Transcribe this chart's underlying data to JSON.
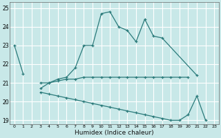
{
  "xlabel": "Humidex (Indice chaleur)",
  "background_color": "#c8e8e8",
  "grid_color": "#ffffff",
  "line_color": "#2a7a7a",
  "xlim": [
    -0.5,
    23.5
  ],
  "ylim": [
    18.8,
    25.3
  ],
  "yticks": [
    19,
    20,
    21,
    22,
    23,
    24,
    25
  ],
  "xtick_labels": [
    "0",
    "1",
    "2",
    "3",
    "4",
    "5",
    "6",
    "7",
    "8",
    "9",
    "10",
    "11",
    "12",
    "13",
    "14",
    "15",
    "16",
    "17",
    "18",
    "19",
    "20",
    "21",
    "22",
    "23"
  ],
  "xtick_vals": [
    0,
    1,
    2,
    3,
    4,
    5,
    6,
    7,
    8,
    9,
    10,
    11,
    12,
    13,
    14,
    15,
    16,
    17,
    18,
    19,
    20,
    21,
    22,
    23
  ],
  "series": [
    {
      "segments": [
        {
          "x": [
            0,
            1
          ],
          "y": [
            23.0,
            21.5
          ]
        },
        {
          "x": [
            3,
            4,
            5,
            6,
            7,
            8,
            9,
            10,
            11,
            12,
            13,
            14,
            15,
            16,
            17,
            21
          ],
          "y": [
            21.0,
            21.0,
            21.2,
            21.3,
            21.8,
            23.0,
            23.0,
            24.7,
            24.8,
            24.0,
            23.8,
            23.2,
            24.4,
            23.5,
            23.4,
            21.4
          ]
        }
      ]
    },
    {
      "segments": [
        {
          "x": [
            3,
            4,
            5,
            6,
            7,
            8,
            9,
            10,
            11,
            12,
            13,
            14,
            15,
            16,
            17,
            18,
            19,
            20
          ],
          "y": [
            20.7,
            21.0,
            21.1,
            21.2,
            21.2,
            21.3,
            21.3,
            21.3,
            21.3,
            21.3,
            21.3,
            21.3,
            21.3,
            21.3,
            21.3,
            21.3,
            21.3,
            21.3
          ]
        }
      ]
    },
    {
      "segments": [
        {
          "x": [
            3,
            4,
            5,
            6,
            7,
            8,
            9,
            10,
            11,
            12,
            13,
            14,
            15,
            16,
            17,
            18,
            19,
            20,
            21,
            22
          ],
          "y": [
            20.5,
            20.4,
            20.3,
            20.2,
            20.1,
            20.0,
            19.9,
            19.8,
            19.7,
            19.6,
            19.5,
            19.4,
            19.3,
            19.2,
            19.1,
            19.0,
            19.0,
            19.3,
            20.3,
            19.0
          ]
        }
      ]
    }
  ]
}
